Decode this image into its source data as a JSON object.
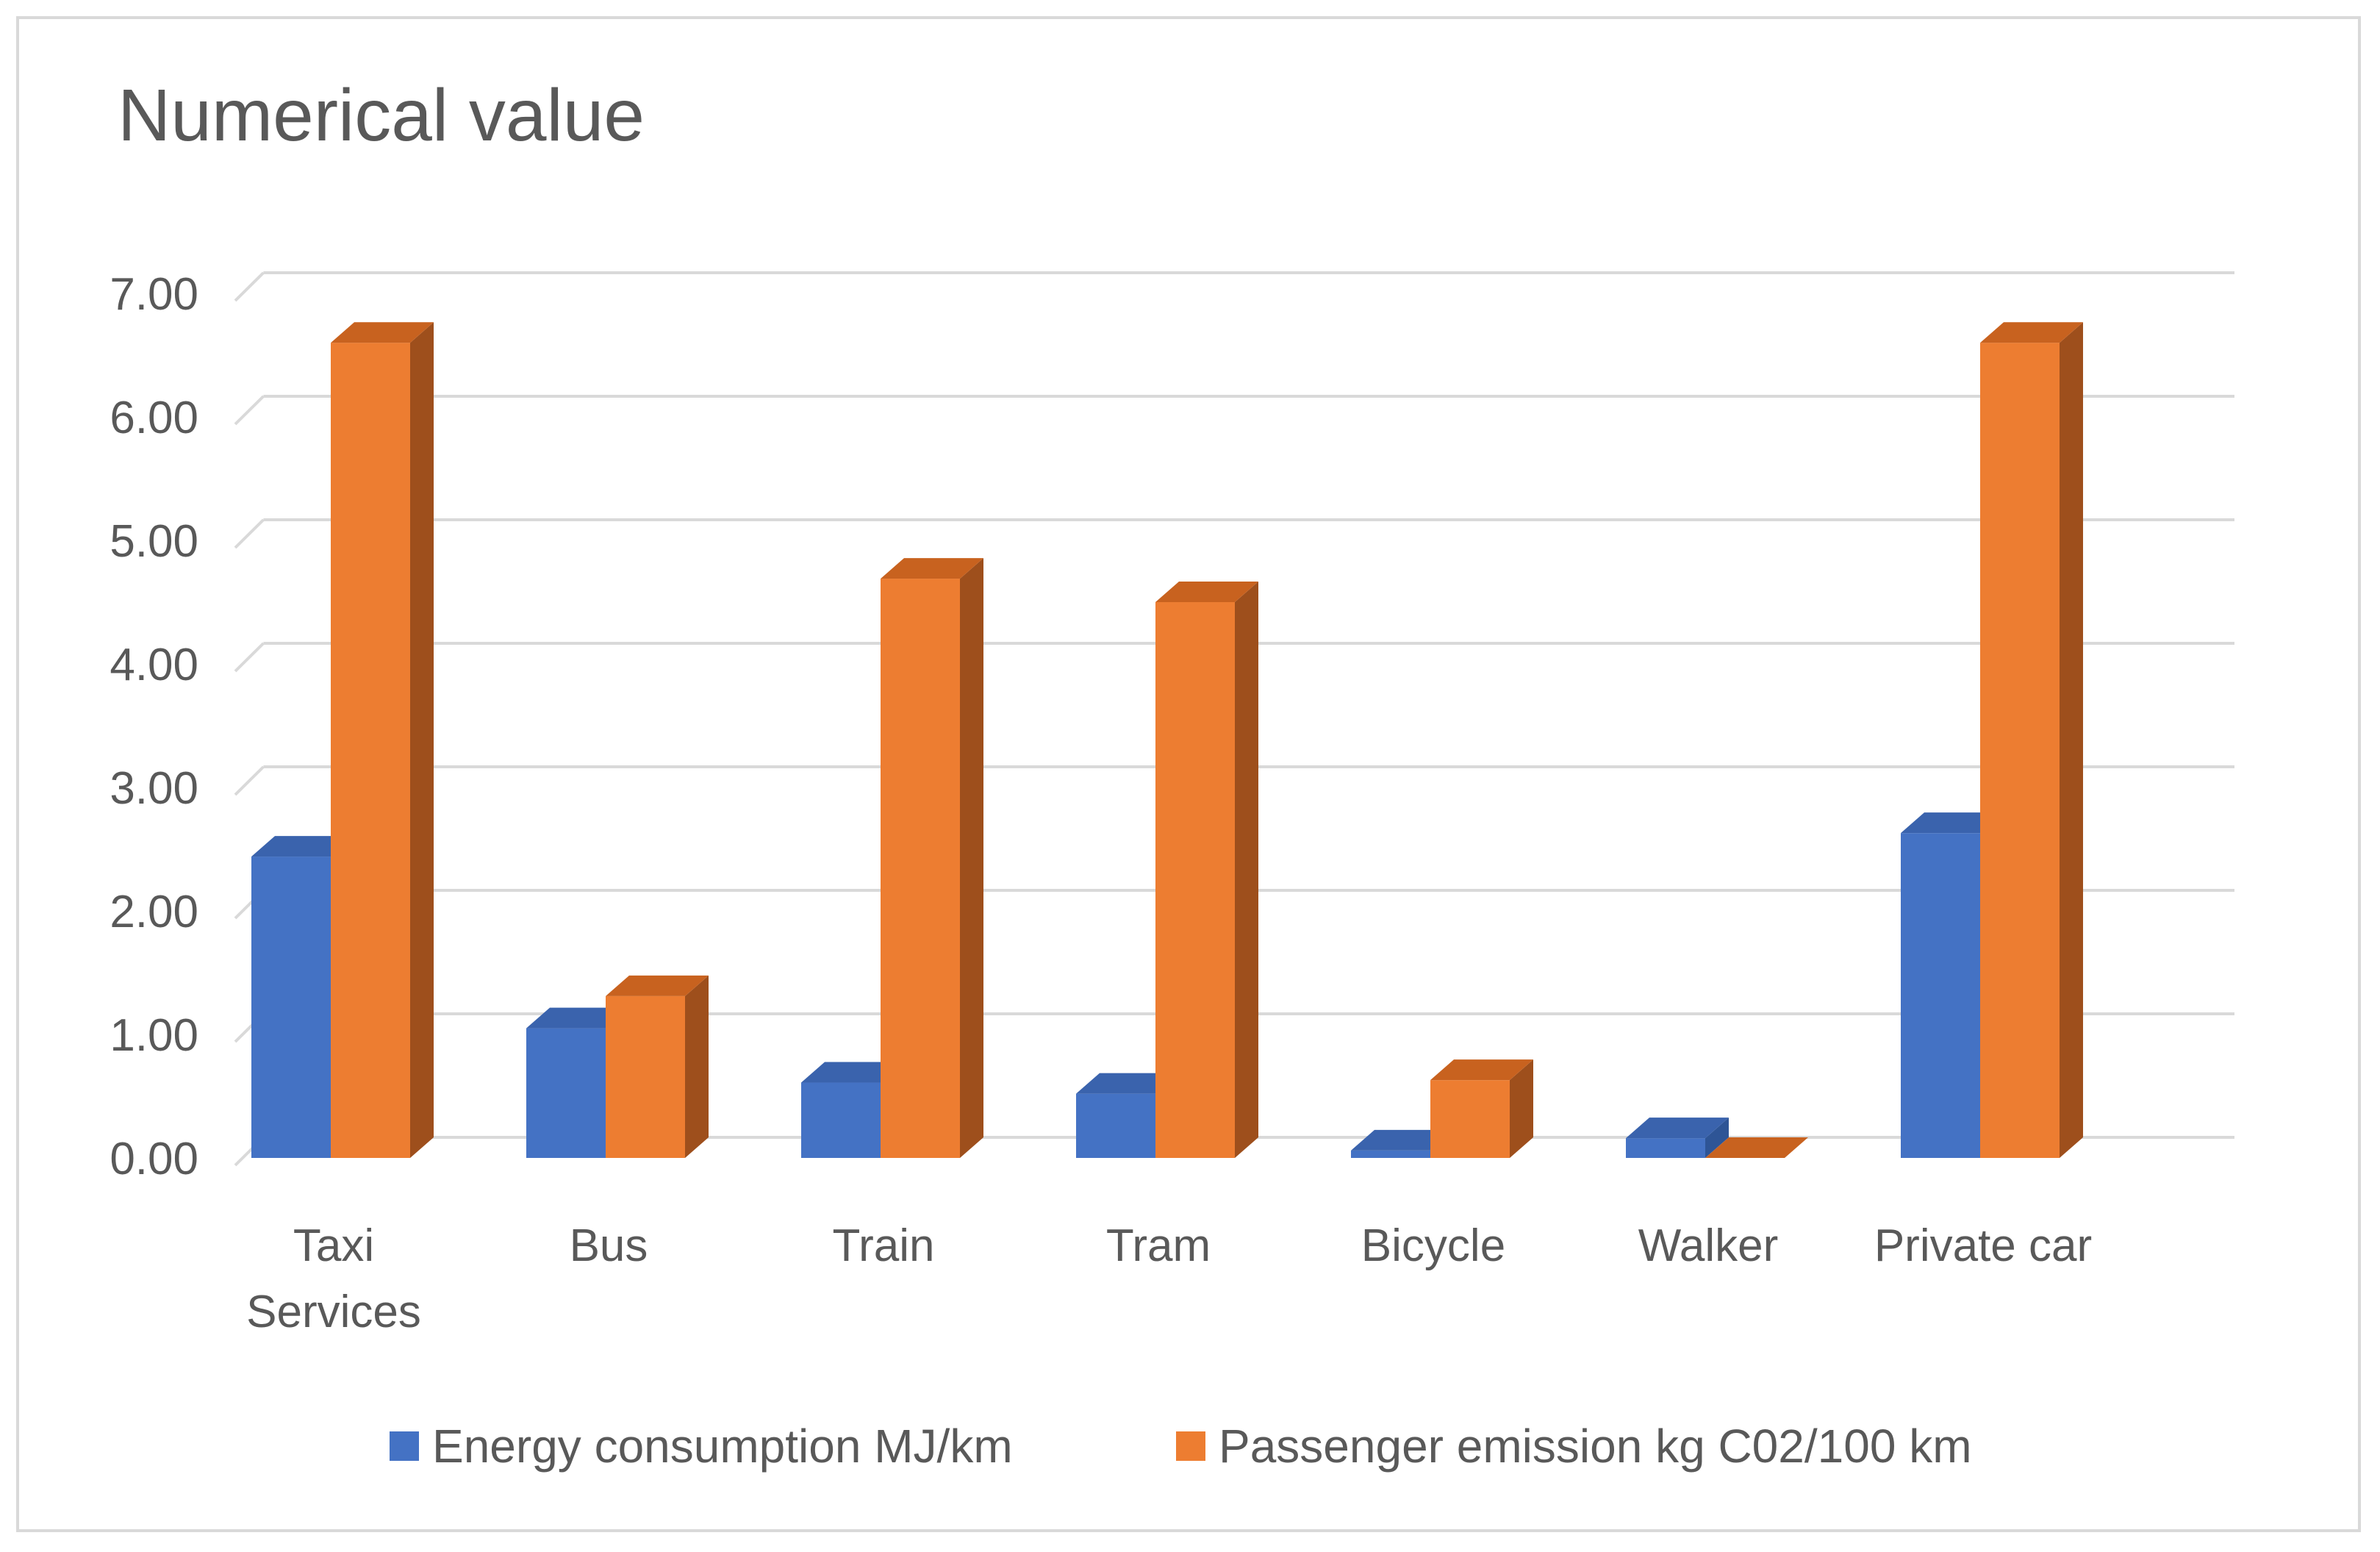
{
  "chart_data": {
    "type": "bar",
    "title": "Numerical value",
    "categories": [
      [
        "Taxi",
        "Services"
      ],
      [
        "Bus"
      ],
      [
        "Train"
      ],
      [
        "Tram"
      ],
      [
        "Bicycle"
      ],
      [
        "Walker"
      ],
      [
        "Private car"
      ]
    ],
    "series": [
      {
        "name": "Energy consumption MJ/km",
        "values": [
          2.44,
          1.05,
          0.61,
          0.52,
          0.06,
          0.16,
          2.63
        ],
        "color": "#4472c4",
        "side_color": "#2e5596",
        "top_color": "#3a63ad"
      },
      {
        "name": "Passenger emission kg C02/100 km",
        "values": [
          6.6,
          1.31,
          4.69,
          4.5,
          0.63,
          0.0,
          6.6
        ],
        "color": "#ed7d31",
        "side_color": "#9e4f1c",
        "top_color": "#c8621f"
      }
    ],
    "ylim": [
      0,
      7
    ],
    "yticks": [
      0,
      1,
      2,
      3,
      4,
      5,
      6,
      7
    ],
    "ytick_labels": [
      "0.00",
      "1.00",
      "2.00",
      "3.00",
      "4.00",
      "5.00",
      "6.00",
      "7.00"
    ],
    "grid": true,
    "legend": "bottom",
    "xlabel": "",
    "ylabel": ""
  }
}
